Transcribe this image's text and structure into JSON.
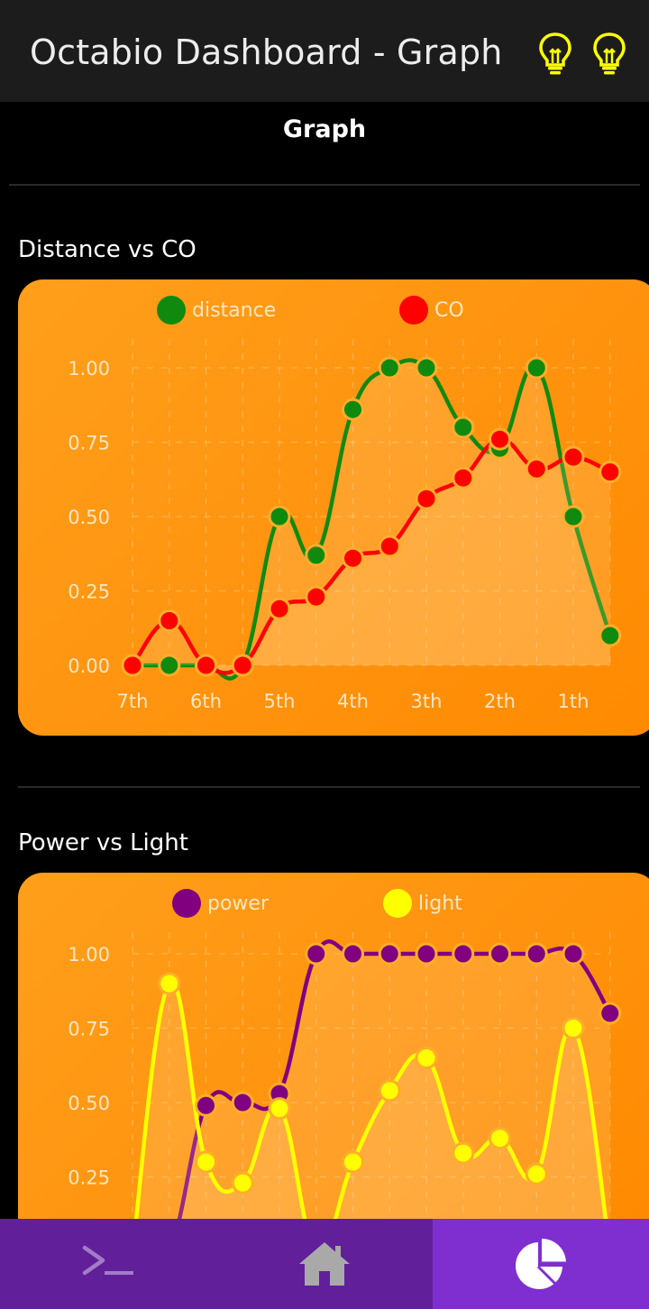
{
  "app": {
    "title": "Octabio Dashboard - Graph"
  },
  "header_icons": [
    {
      "icon": "lightbulb-icon",
      "color": "#ffff00"
    },
    {
      "icon": "lightbulb-icon",
      "color": "#ffff00"
    }
  ],
  "page": {
    "heading": "Graph"
  },
  "charts": {
    "distance_co": {
      "label": "Distance vs CO"
    },
    "power_light": {
      "label": "Power vs Light"
    }
  },
  "chart_data": [
    {
      "type": "line",
      "title": "Distance vs CO",
      "categories": [
        "7th",
        "6th",
        "5th",
        "4th",
        "3th",
        "2th",
        "1th"
      ],
      "x": [
        0,
        0.5,
        1,
        1.5,
        2,
        2.5,
        3,
        3.5,
        4,
        4.5,
        5,
        5.5,
        6,
        6.5
      ],
      "y_ticks": [
        "0.00",
        "0.25",
        "0.50",
        "0.75",
        "1.00"
      ],
      "ylim": [
        0,
        1
      ],
      "legend": "top",
      "grid": true,
      "series": [
        {
          "name": "distance",
          "color": "#0f8a0f",
          "values": [
            0.0,
            0.0,
            0.0,
            0.0,
            0.5,
            0.37,
            0.86,
            1.0,
            1.0,
            0.8,
            0.73,
            1.0,
            0.5,
            0.1
          ]
        },
        {
          "name": "CO",
          "color": "#ff0000",
          "values": [
            0.0,
            0.15,
            0.0,
            0.0,
            0.19,
            0.23,
            0.36,
            0.4,
            0.56,
            0.63,
            0.76,
            0.66,
            0.7,
            0.65
          ]
        }
      ]
    },
    {
      "type": "line",
      "title": "Power vs Light",
      "categories": [],
      "x": [
        0,
        0.5,
        1,
        1.5,
        2,
        2.5,
        3,
        3.5,
        4,
        4.5,
        5,
        5.5,
        6,
        6.5
      ],
      "y_ticks": [
        "0.25",
        "0.50",
        "0.75",
        "1.00"
      ],
      "ylim": [
        0,
        1
      ],
      "legend": "top",
      "grid": true,
      "series": [
        {
          "name": "power",
          "color": "#800080",
          "values": [
            0.0,
            0.0,
            0.49,
            0.5,
            0.53,
            1.0,
            1.0,
            1.0,
            1.0,
            1.0,
            1.0,
            1.0,
            1.0,
            0.8
          ]
        },
        {
          "name": "light",
          "color": "#ffff00",
          "values": [
            0.0,
            0.9,
            0.3,
            0.23,
            0.48,
            0.0,
            0.3,
            0.54,
            0.65,
            0.33,
            0.38,
            0.26,
            0.75,
            0.0
          ]
        }
      ]
    }
  ],
  "bottom_nav": [
    {
      "icon": "terminal-icon",
      "active": false
    },
    {
      "icon": "home-icon",
      "active": false
    },
    {
      "icon": "pie-chart-icon",
      "active": true
    }
  ]
}
